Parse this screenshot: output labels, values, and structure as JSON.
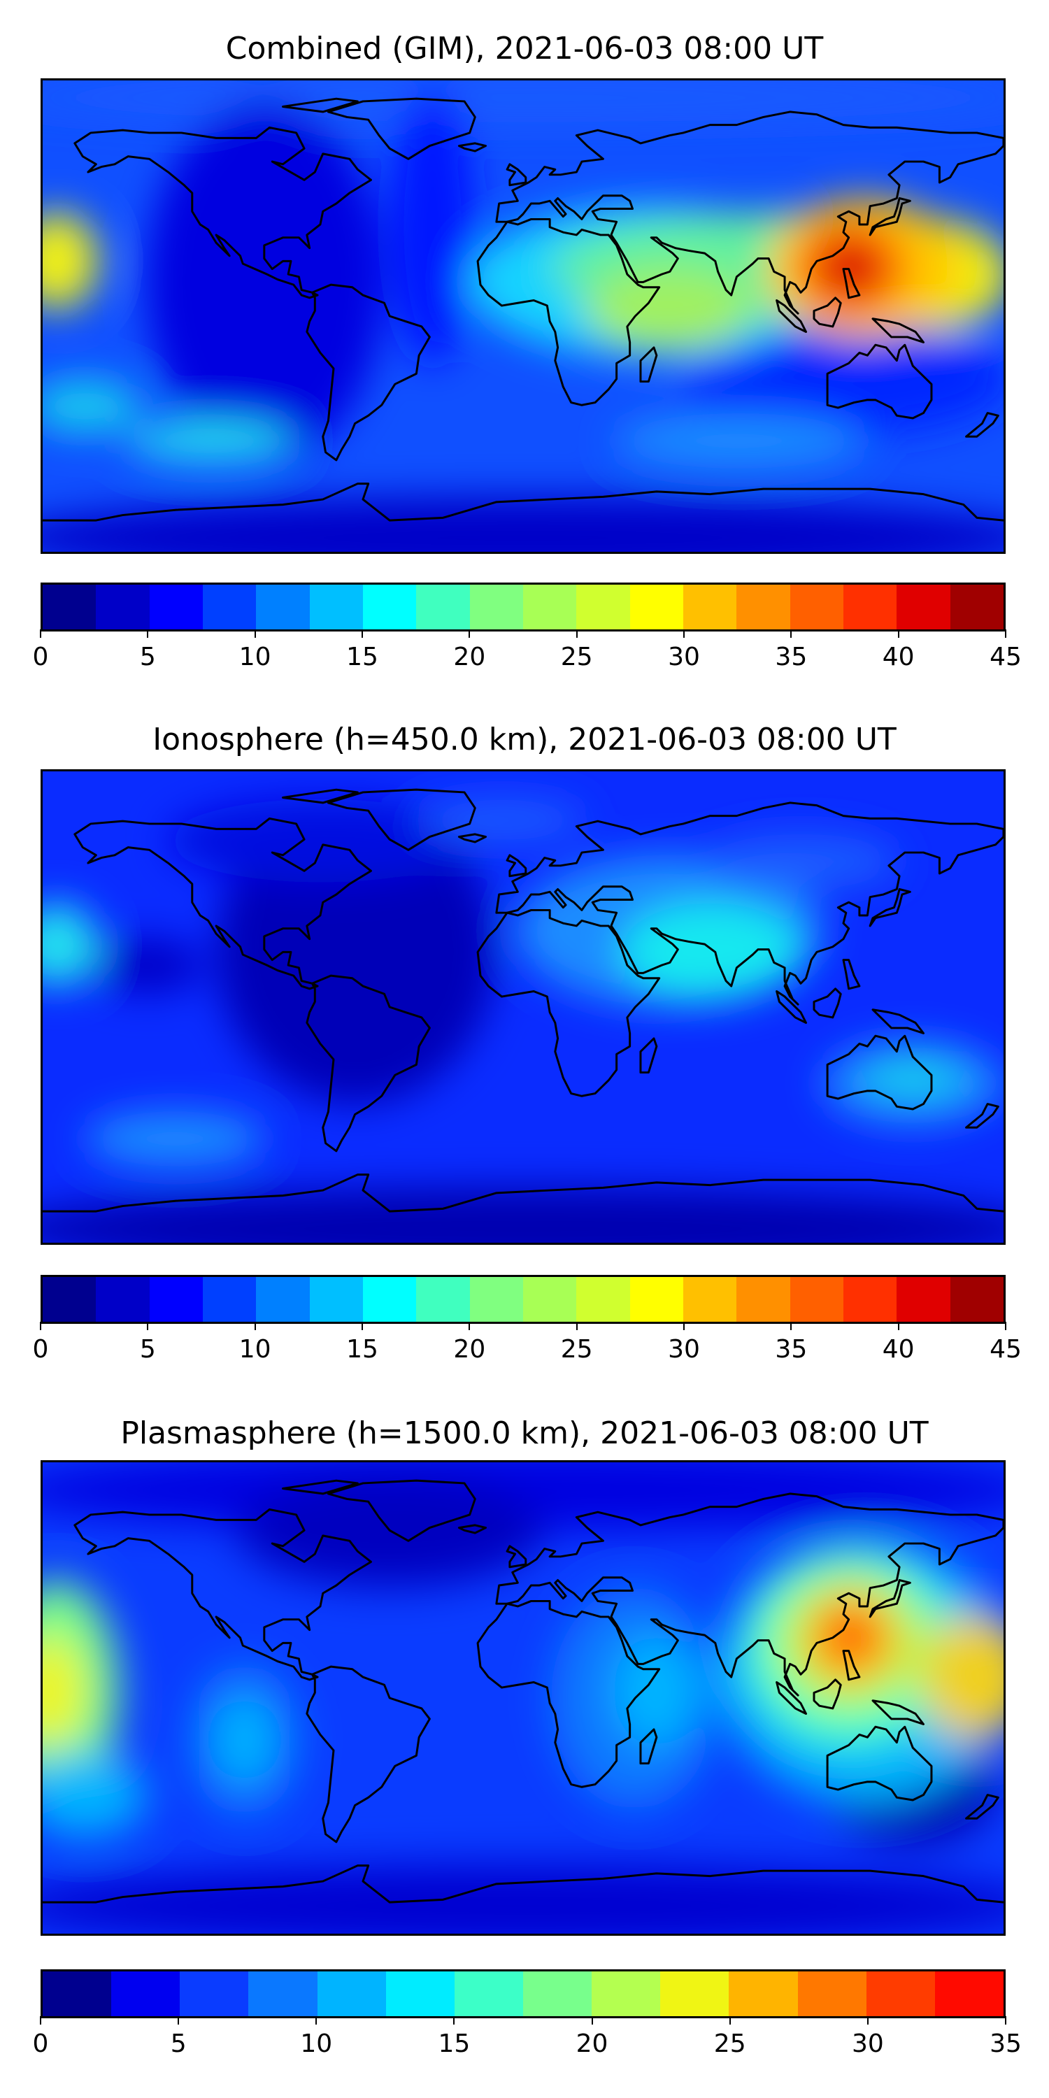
{
  "colors": {
    "map14": [
      "#00008f",
      "#0000d5",
      "#0c1cff",
      "#1c5cff",
      "#1e8cff",
      "#0cc0ff",
      "#14f0f0",
      "#3cf0c8",
      "#64f08c",
      "#a0f05a",
      "#d2f53c",
      "#f0f014",
      "#ffc800",
      "#ff9600",
      "#ff6400",
      "#ff2d00",
      "#d70000",
      "#8f0000"
    ],
    "bar45": [
      "#00008f",
      "#0000c8",
      "#0000ff",
      "#0040ff",
      "#0080ff",
      "#00bfff",
      "#00ffff",
      "#40ffbf",
      "#80ff80",
      "#a8ff55",
      "#d0ff2f",
      "#ffff00",
      "#ffc000",
      "#ff9000",
      "#ff6000",
      "#ff3000",
      "#e00000",
      "#a00000"
    ],
    "bar35": [
      "#00008f",
      "#0000f0",
      "#0a3cff",
      "#0a78ff",
      "#00b4ff",
      "#00ecff",
      "#3cffc8",
      "#78ff8c",
      "#b4ff50",
      "#f0f514",
      "#ffb400",
      "#ff7800",
      "#ff3c00",
      "#ff0a00",
      "#b40000"
    ],
    "coast": "#000000"
  },
  "panels": [
    {
      "title": "Combined (GIM), 2021-06-03 08:00 UT",
      "colorbar": {
        "min": 0,
        "max": 45,
        "levels": 18,
        "ticks": [
          "0",
          "5",
          "10",
          "15",
          "20",
          "25",
          "30",
          "35",
          "40",
          "45"
        ]
      }
    },
    {
      "title": "Ionosphere  (h=450.0 km), 2021-06-03 08:00 UT",
      "colorbar": {
        "min": 0,
        "max": 45,
        "levels": 18,
        "ticks": [
          "0",
          "5",
          "10",
          "15",
          "20",
          "25",
          "30",
          "35",
          "40",
          "45"
        ]
      }
    },
    {
      "title": "Plasmasphere (h=1500.0 km), 2021-06-03 08:00 UT",
      "colorbar": {
        "min": 0,
        "max": 35,
        "levels": 14,
        "ticks": [
          "0",
          "5",
          "10",
          "15",
          "20",
          "25",
          "30",
          "35"
        ]
      }
    }
  ],
  "chart_data": [
    {
      "type": "heatmap",
      "title": "Combined (GIM), 2021-06-03 08:00 UT",
      "projection": "plate-carree, global",
      "colormap": "jet",
      "value_range": [
        0,
        45
      ],
      "colorbar_ticks": [
        0,
        5,
        10,
        15,
        20,
        25,
        30,
        35,
        40,
        45
      ],
      "features": [
        {
          "lon": 105,
          "lat": 15,
          "value": 40
        },
        {
          "lon": 150,
          "lat": 15,
          "value": 30
        },
        {
          "lon": 55,
          "lat": -5,
          "value": 25
        },
        {
          "lon": 20,
          "lat": 5,
          "value": 20
        },
        {
          "lon": -175,
          "lat": 10,
          "value": 25
        },
        {
          "lon": -90,
          "lat": -10,
          "value": 8
        },
        {
          "lon": -20,
          "lat": 40,
          "value": 7
        },
        {
          "lon": -120,
          "lat": -40,
          "value": 15
        },
        {
          "lon": 0,
          "lat": -70,
          "value": 5
        }
      ]
    },
    {
      "type": "heatmap",
      "title": "Ionosphere  (h=450.0 km), 2021-06-03 08:00 UT",
      "projection": "plate-carree, global",
      "colormap": "jet",
      "value_range": [
        0,
        45
      ],
      "colorbar_ticks": [
        0,
        5,
        10,
        15,
        20,
        25,
        30,
        35,
        40,
        45
      ],
      "features": [
        {
          "lon": 45,
          "lat": 25,
          "value": 17
        },
        {
          "lon": 45,
          "lat": 10,
          "value": 15
        },
        {
          "lon": 140,
          "lat": -25,
          "value": 12
        },
        {
          "lon": -175,
          "lat": 10,
          "value": 15
        },
        {
          "lon": -80,
          "lat": 10,
          "value": 3
        },
        {
          "lon": -130,
          "lat": -40,
          "value": 12
        },
        {
          "lon": 0,
          "lat": -75,
          "value": 3
        }
      ]
    },
    {
      "type": "heatmap",
      "title": "Plasmasphere (h=1500.0 km), 2021-06-03 08:00 UT",
      "projection": "plate-carree, global",
      "colormap": "jet",
      "value_range": [
        0,
        35
      ],
      "colorbar_ticks": [
        0,
        5,
        10,
        15,
        20,
        25,
        30,
        35
      ],
      "features": [
        {
          "lon": 105,
          "lat": 15,
          "value": 32
        },
        {
          "lon": 155,
          "lat": 10,
          "value": 22
        },
        {
          "lon": -178,
          "lat": 0,
          "value": 20
        },
        {
          "lon": 40,
          "lat": -5,
          "value": 12
        },
        {
          "lon": -110,
          "lat": -25,
          "value": 12
        },
        {
          "lon": -80,
          "lat": 20,
          "value": 5
        },
        {
          "lon": 150,
          "lat": -30,
          "value": 3
        },
        {
          "lon": -40,
          "lat": 55,
          "value": 3
        }
      ]
    }
  ]
}
